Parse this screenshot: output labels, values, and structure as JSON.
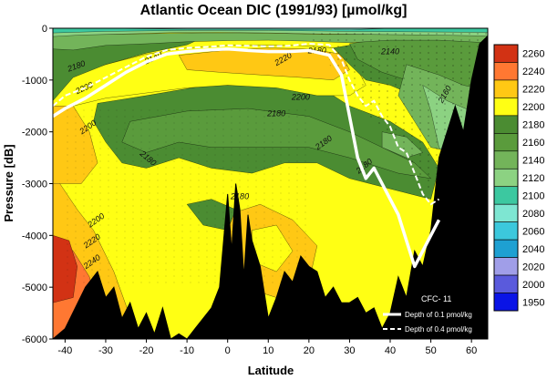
{
  "chart_data": {
    "type": "heatmap",
    "title": "Atlantic Ocean DIC (1991/93) [µmol/kg]",
    "xlabel": "Latitude",
    "ylabel": "Pressure [dB]",
    "xlim": [
      -43,
      64
    ],
    "ylim": [
      -6000,
      0
    ],
    "xticks": [
      -40,
      -30,
      -20,
      -10,
      0,
      10,
      20,
      30,
      40,
      50,
      60
    ],
    "yticks": [
      0,
      -1000,
      -2000,
      -3000,
      -4000,
      -5000,
      -6000
    ],
    "xtick_labels": [
      "-40",
      "-30",
      "-20",
      "-10",
      "0",
      "10",
      "20",
      "30",
      "40",
      "50",
      "60"
    ],
    "ytick_labels": [
      "0",
      "-1000",
      "-2000",
      "-3000",
      "-4000",
      "-5000",
      "-6000"
    ],
    "colorbar": {
      "levels": [
        1950,
        2000,
        2020,
        2040,
        2060,
        2080,
        2100,
        2120,
        2140,
        2160,
        2180,
        2200,
        2220,
        2240,
        2260
      ],
      "labels": [
        "1950",
        "2000",
        "2020",
        "2040",
        "2060",
        "2080",
        "2100",
        "2120",
        "2140",
        "2160",
        "2180",
        "2200",
        "2220",
        "2240",
        "2260"
      ],
      "colors": [
        "#0a14e6",
        "#5a5adc",
        "#a09ee8",
        "#1ea0d2",
        "#3cc8dc",
        "#7ee6d2",
        "#3cc8a0",
        "#8cd282",
        "#73b45a",
        "#5a9b3c",
        "#4b8c32",
        "#ffff14",
        "#ffc814",
        "#ff7832",
        "#d23214"
      ]
    },
    "contour_labels": [
      {
        "text": "2180",
        "x": -37,
        "y": -780,
        "rot": -20
      },
      {
        "text": "2140",
        "x": -18,
        "y": -620,
        "rot": -25
      },
      {
        "text": "2200",
        "x": -35,
        "y": -1200,
        "rot": -25
      },
      {
        "text": "2200",
        "x": -34,
        "y": -1950,
        "rot": -35
      },
      {
        "text": "2200",
        "x": -32,
        "y": -3750,
        "rot": -35
      },
      {
        "text": "2220",
        "x": -33,
        "y": -4150,
        "rot": -35
      },
      {
        "text": "2240",
        "x": -33,
        "y": -4550,
        "rot": -35
      },
      {
        "text": "2180",
        "x": -20,
        "y": -2550,
        "rot": 40
      },
      {
        "text": "2200",
        "x": 18,
        "y": -1380,
        "rot": 0
      },
      {
        "text": "2180",
        "x": 12,
        "y": -1700,
        "rot": 0
      },
      {
        "text": "2180",
        "x": 3,
        "y": -3300,
        "rot": 0
      },
      {
        "text": "2220",
        "x": 14,
        "y": -640,
        "rot": -30
      },
      {
        "text": "2180",
        "x": 22,
        "y": -480,
        "rot": 0
      },
      {
        "text": "2140",
        "x": 40,
        "y": -500,
        "rot": 0
      },
      {
        "text": "2160",
        "x": 54,
        "y": -1300,
        "rot": -60
      },
      {
        "text": "2180",
        "x": 24,
        "y": -2250,
        "rot": -35
      },
      {
        "text": "2180",
        "x": 34,
        "y": -2700,
        "rot": -40
      }
    ],
    "series": [
      {
        "name": "Depth of 0.1 pmol/kg",
        "style": "solid",
        "x": [
          -43,
          -40,
          -35,
          -30,
          -25,
          -20,
          -15,
          -10,
          -5,
          0,
          5,
          10,
          15,
          20,
          25,
          28,
          30,
          32,
          34,
          36,
          38,
          40,
          42,
          44,
          46,
          48,
          50,
          52
        ],
        "y": [
          -1700,
          -1550,
          -1350,
          -1100,
          -850,
          -650,
          -500,
          -450,
          -420,
          -400,
          -430,
          -450,
          -450,
          -430,
          -520,
          -900,
          -1700,
          -2500,
          -2900,
          -2700,
          -3000,
          -3300,
          -3600,
          -4100,
          -4600,
          -4300,
          -4000,
          -3700
        ]
      },
      {
        "name": "Depth of 0.4 pmol/kg",
        "style": "dashed",
        "x": [
          -43,
          -40,
          -35,
          -30,
          -25,
          -20,
          -15,
          -10,
          -5,
          0,
          5,
          10,
          15,
          20,
          25,
          28,
          30,
          32,
          34,
          36,
          38,
          40,
          42,
          44,
          46,
          48,
          50,
          52
        ],
        "y": [
          -1500,
          -1300,
          -1150,
          -950,
          -750,
          -550,
          -420,
          -380,
          -360,
          -330,
          -340,
          -350,
          -340,
          -300,
          -320,
          -600,
          -1000,
          -1300,
          -1500,
          -1400,
          -1700,
          -1900,
          -2300,
          -2400,
          -2800,
          -3200,
          -3400,
          -3300
        ]
      }
    ],
    "legend": {
      "heading": "CFC- 11",
      "items": [
        "Depth of 0.1 pmol/kg",
        "Depth of 0.4 pmol/kg"
      ],
      "placement": "bottom-right"
    },
    "bathymetry": {
      "x": [
        -43,
        -40,
        -35,
        -32,
        -30,
        -28,
        -26,
        -24,
        -22,
        -20,
        -18,
        -16,
        -14,
        -12,
        -10,
        -8,
        -6,
        -4,
        -2,
        0,
        1,
        2,
        3,
        4,
        5,
        6,
        8,
        10,
        12,
        14,
        16,
        18,
        20,
        22,
        24,
        26,
        28,
        30,
        32,
        34,
        36,
        38,
        40,
        42,
        44,
        46,
        48,
        50,
        52,
        54,
        56,
        58,
        60,
        62,
        64
      ],
      "y": [
        -6000,
        -5800,
        -5000,
        -4700,
        -5200,
        -5000,
        -5600,
        -5300,
        -5800,
        -5500,
        -5900,
        -5400,
        -6000,
        -5900,
        -6000,
        -5800,
        -5600,
        -5400,
        -5000,
        -3200,
        -4300,
        -3000,
        -3500,
        -4800,
        -3600,
        -4100,
        -4600,
        -5600,
        -5200,
        -4700,
        -4900,
        -4400,
        -4600,
        -4700,
        -5200,
        -5000,
        -5300,
        -5300,
        -5200,
        -5500,
        -5400,
        -5800,
        -5500,
        -4800,
        -5200,
        -4300,
        -4600,
        -3900,
        -2500,
        -2000,
        -1500,
        -2000,
        -1000,
        -300,
        -150
      ]
    }
  }
}
